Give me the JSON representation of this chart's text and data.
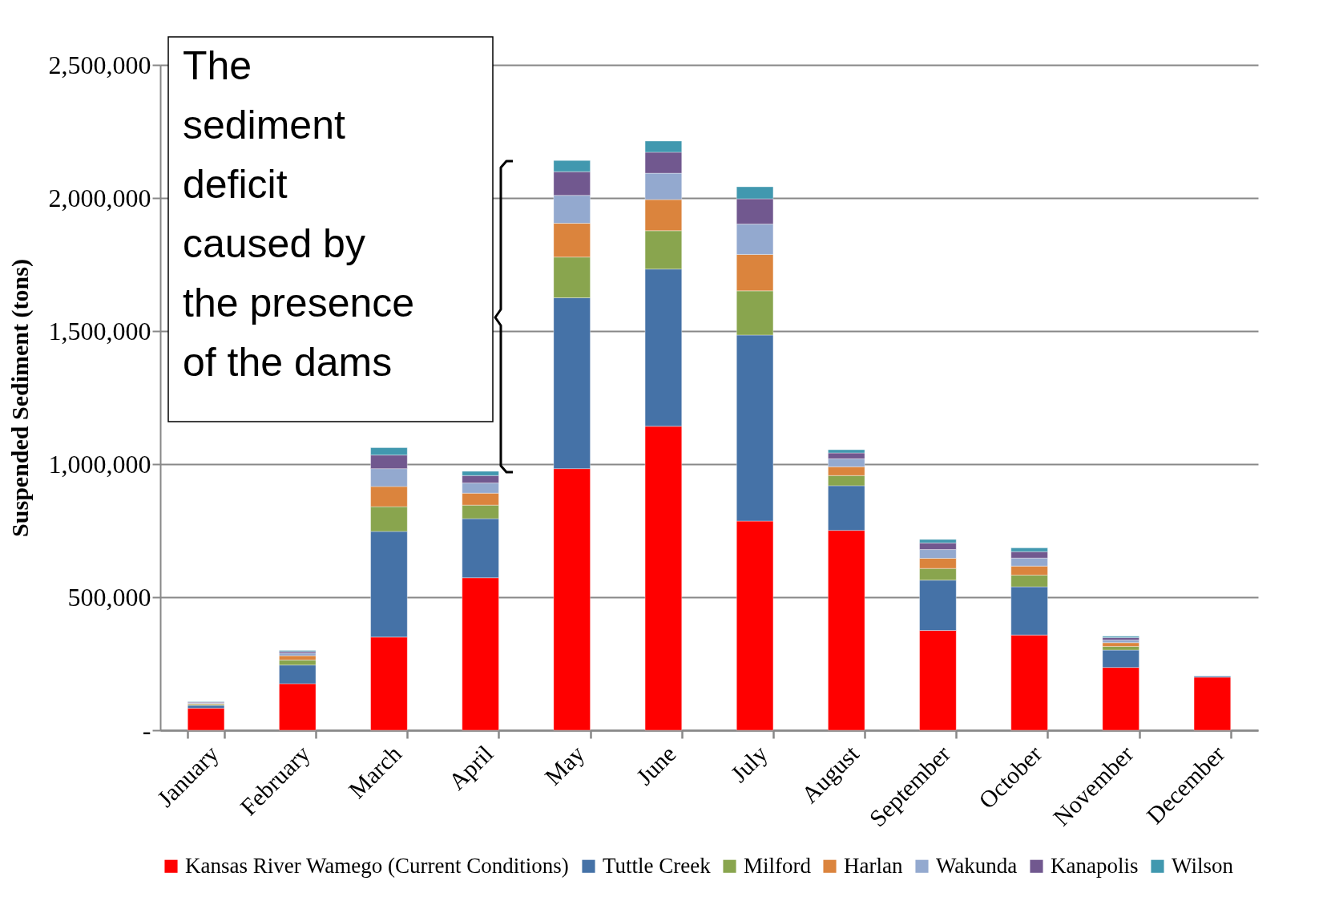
{
  "chart_data": {
    "type": "bar",
    "stacked": true,
    "ylabel": "Suspended Sediment (tons)",
    "categories": [
      "January",
      "February",
      "March",
      "April",
      "May",
      "June",
      "July",
      "August",
      "September",
      "October",
      "November",
      "December"
    ],
    "series": [
      {
        "name": "Kansas River Wamego (Current Conditions)",
        "color": "#ff0000",
        "values": [
          83000,
          175000,
          350000,
          573000,
          983000,
          1142000,
          786000,
          751000,
          375000,
          358000,
          236000,
          199000
        ]
      },
      {
        "name": "Tuttle Creek",
        "color": "#4572a7",
        "values": [
          10000,
          70000,
          397000,
          222000,
          642000,
          591000,
          699000,
          168000,
          189000,
          181000,
          65000,
          4000
        ]
      },
      {
        "name": "Milford",
        "color": "#89a54e",
        "values": [
          4000,
          19000,
          93000,
          51000,
          153000,
          144000,
          166000,
          38000,
          44000,
          44000,
          14000,
          null
        ]
      },
      {
        "name": "Harlan",
        "color": "#db843d",
        "values": [
          3000,
          16000,
          76000,
          45000,
          127000,
          117000,
          137000,
          33000,
          38000,
          34000,
          14000,
          null
        ]
      },
      {
        "name": "Wakunda",
        "color": "#93a9cf",
        "values": [
          3000,
          10000,
          67000,
          38000,
          105000,
          99000,
          114000,
          30000,
          33000,
          30000,
          10000,
          null
        ]
      },
      {
        "name": "Kanapolis",
        "color": "#71588f",
        "values": [
          3000,
          6000,
          51000,
          28000,
          89000,
          79000,
          95000,
          22000,
          25000,
          24000,
          9000,
          null
        ]
      },
      {
        "name": "Wilson",
        "color": "#4198af",
        "values": [
          2000,
          4000,
          28000,
          16000,
          42000,
          42000,
          45000,
          12000,
          13000,
          14000,
          5000,
          null
        ]
      }
    ],
    "ylim": [
      0,
      2500000
    ],
    "yticks": [
      {
        "value": 0,
        "label": "-"
      },
      {
        "value": 500000,
        "label": "500,000"
      },
      {
        "value": 1000000,
        "label": "1,000,000"
      },
      {
        "value": 1500000,
        "label": "1,500,000"
      },
      {
        "value": 2000000,
        "label": "2,000,000"
      },
      {
        "value": 2500000,
        "label": "2,500,000"
      }
    ],
    "grid": "y",
    "legend": "bottom",
    "annotations": [
      "The\nsediment\ndeficit\ncaused by\nthe presence\nof the dams"
    ]
  }
}
